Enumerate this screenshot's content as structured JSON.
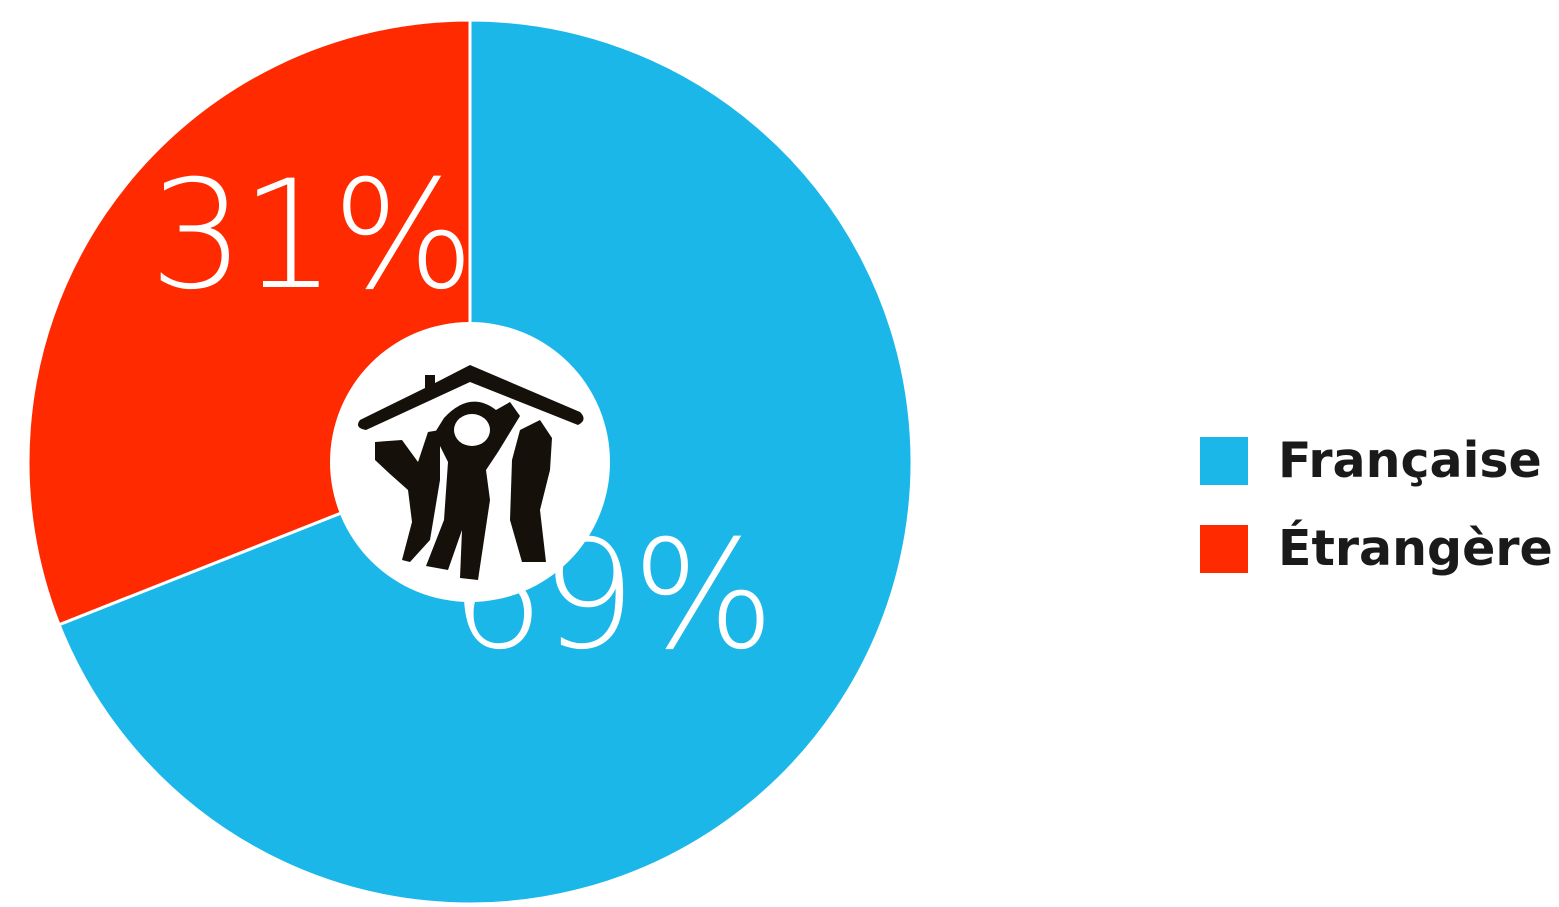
{
  "chart_data": {
    "type": "pie",
    "donut": true,
    "slices": [
      {
        "label": "Française",
        "value": 69,
        "display": "69%",
        "color": "#1cb7e9"
      },
      {
        "label": "Étrangère",
        "value": 31,
        "display": "31%",
        "color": "#ff2a00"
      }
    ],
    "start_angle_deg": 0,
    "direction": "clockwise",
    "center_icon": "house-family-logo-icon",
    "legend": {
      "placement": "right",
      "entries": [
        "Française",
        "Étrangère"
      ]
    },
    "title": ""
  }
}
